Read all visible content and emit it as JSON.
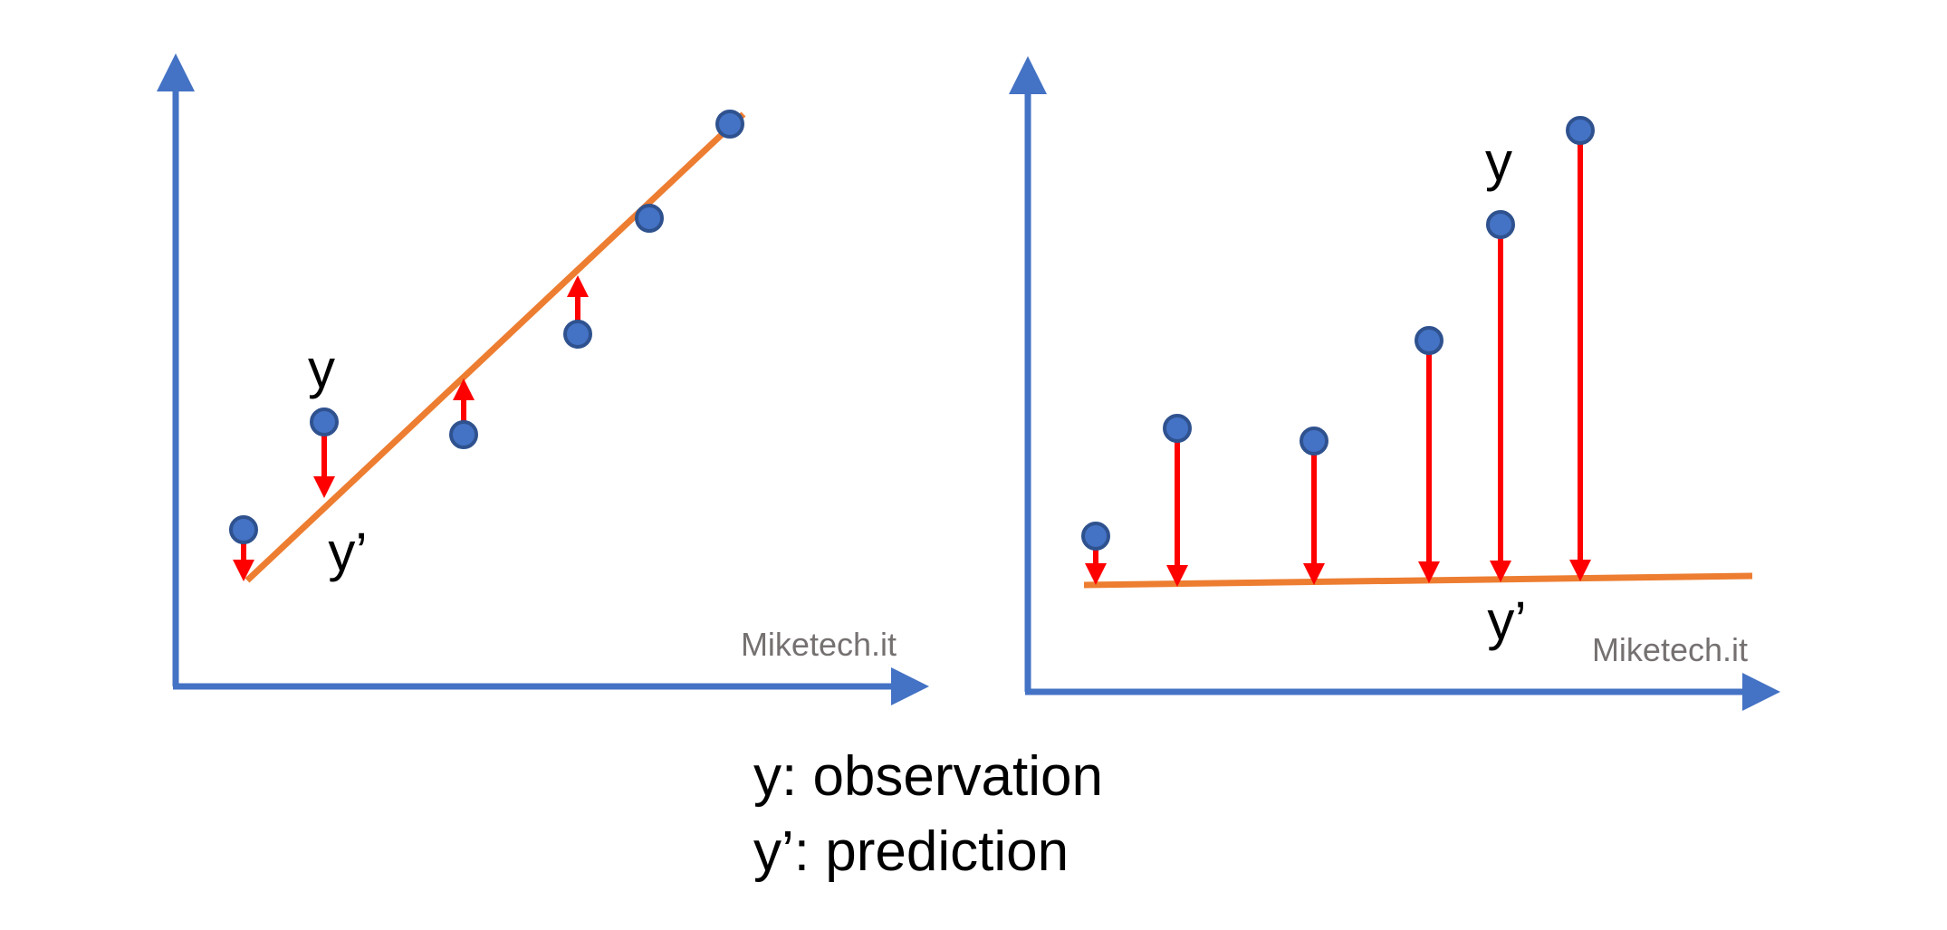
{
  "left_panel": {
    "observation_label": "y",
    "prediction_label": "y’",
    "watermark": "Miketech.it"
  },
  "right_panel": {
    "observation_label": "y",
    "prediction_label": "y’",
    "watermark": "Miketech.it"
  },
  "legend": [
    "y: observation",
    "y’: prediction"
  ]
}
